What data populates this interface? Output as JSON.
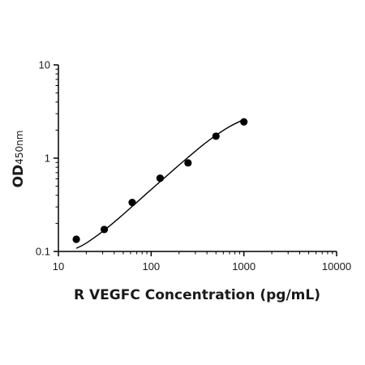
{
  "chart_data": {
    "type": "scatter",
    "title": "",
    "xlabel": "R VEGFC Concentration (pg/mL)",
    "ylabel_main": "OD",
    "ylabel_sub": "450nm",
    "x_scale": "log",
    "y_scale": "log",
    "xlim": [
      10,
      10000
    ],
    "ylim": [
      0.1,
      10
    ],
    "x_ticks": [
      10,
      100,
      1000,
      10000
    ],
    "x_tick_labels": [
      "10",
      "100",
      "1000",
      "10000"
    ],
    "y_ticks": [
      0.1,
      1,
      10
    ],
    "y_tick_labels": [
      "0.1",
      "1",
      "10"
    ],
    "grid": false,
    "colors": {
      "points": "#000000",
      "curve": "#000000",
      "axis": "#000000"
    },
    "points": [
      {
        "x": 15.6,
        "y": 0.135
      },
      {
        "x": 31.25,
        "y": 0.172
      },
      {
        "x": 62.5,
        "y": 0.335
      },
      {
        "x": 125,
        "y": 0.61
      },
      {
        "x": 250,
        "y": 0.89
      },
      {
        "x": 500,
        "y": 1.72
      },
      {
        "x": 1000,
        "y": 2.45
      }
    ],
    "fit_curve": [
      {
        "x": 15.6,
        "y": 0.108
      },
      {
        "x": 20,
        "y": 0.123
      },
      {
        "x": 31.25,
        "y": 0.169
      },
      {
        "x": 45,
        "y": 0.228
      },
      {
        "x": 62.5,
        "y": 0.304
      },
      {
        "x": 90,
        "y": 0.42
      },
      {
        "x": 125,
        "y": 0.56
      },
      {
        "x": 180,
        "y": 0.77
      },
      {
        "x": 250,
        "y": 1.02
      },
      {
        "x": 360,
        "y": 1.38
      },
      {
        "x": 500,
        "y": 1.76
      },
      {
        "x": 700,
        "y": 2.18
      },
      {
        "x": 1000,
        "y": 2.6
      }
    ]
  }
}
